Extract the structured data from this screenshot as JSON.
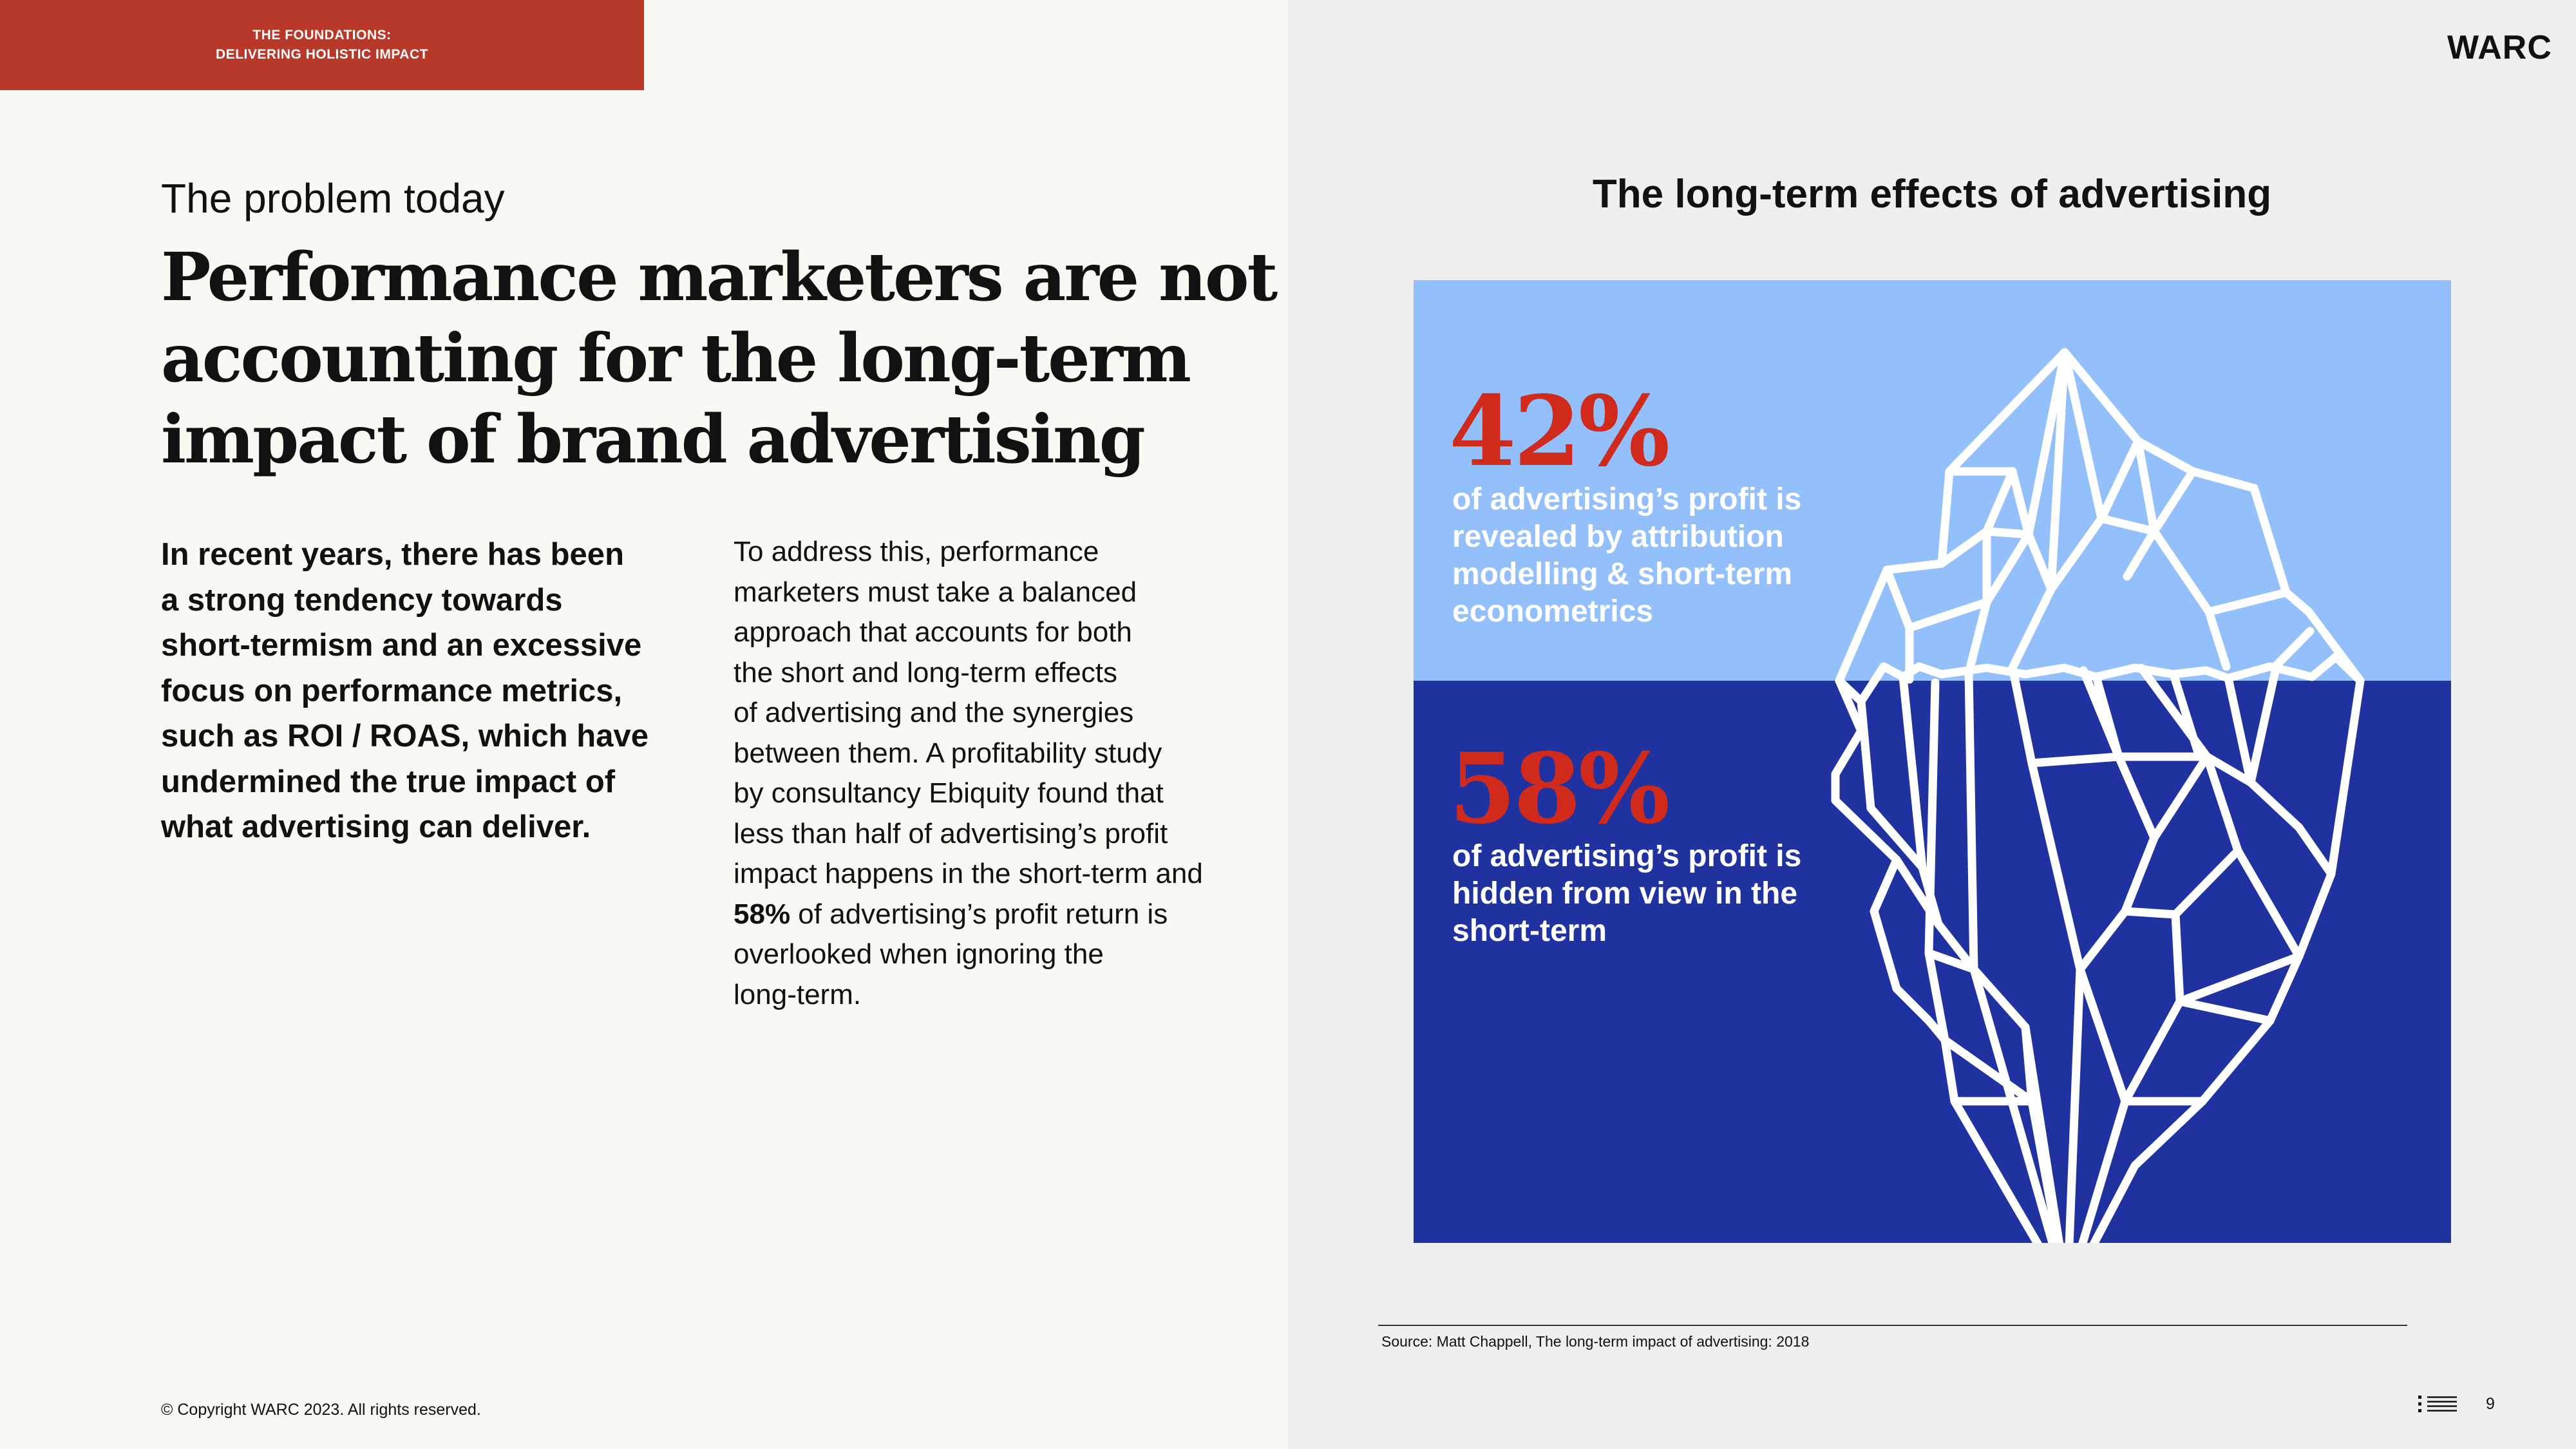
{
  "section_tab": {
    "line1": "THE FOUNDATIONS:",
    "line2": "DELIVERING HOLISTIC IMPACT"
  },
  "brand": "WARC",
  "kicker": "The problem today",
  "headline": [
    "Performance marketers are not",
    "accounting for the long-term",
    "impact of brand advertising"
  ],
  "lead": [
    "In recent years, there has been",
    "a strong tendency towards",
    "short-termism and an excessive",
    "focus on performance metrics,",
    "such as ROI / ROAS, which have",
    "undermined the true impact of",
    "what advertising can deliver."
  ],
  "body": {
    "lines": [
      "To address this, performance",
      "marketers must take a balanced",
      "approach that accounts for both",
      "the short and long-term effects",
      "of advertising and the synergies",
      "between them. A profitability study",
      "by consultancy Ebiquity found that",
      "less than half of advertising’s profit",
      "impact happens in the short-term and"
    ],
    "bold_figure": "58%",
    "line_after_bold": " of advertising’s profit return is",
    "tail_lines": [
      "overlooked when ignoring the",
      "long-term."
    ]
  },
  "figure": {
    "title": "The long-term effects of advertising",
    "top_stat": {
      "value": "42%",
      "text": [
        "of advertising’s profit is",
        "revealed by attribution",
        "modelling & short-term",
        "econometrics"
      ]
    },
    "bottom_stat": {
      "value": "58%",
      "text": [
        "of advertising’s profit is",
        "hidden from view in the",
        "short-term"
      ]
    },
    "colors": {
      "sky": "#93c0fb",
      "sea": "#1f32a0",
      "stat_red": "#cf2a1b",
      "ice_outline": "#ffffff"
    },
    "icon": "iceberg-icon"
  },
  "source": "Source: Matt Chappell, The long-term impact of advertising: 2018",
  "footer": {
    "copyright": "©  Copyright WARC 2023. All rights reserved.",
    "menu_icon": "list-menu-icon",
    "page_number": "9"
  },
  "colors": {
    "accent_red": "#b8382a",
    "left_background": "#f9f8f2",
    "right_background": "#efeff1"
  }
}
